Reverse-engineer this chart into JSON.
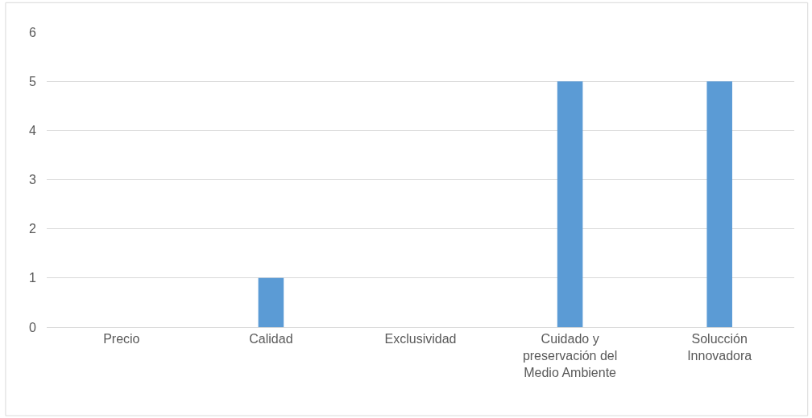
{
  "chart_data": {
    "type": "bar",
    "categories": [
      "Precio",
      "Calidad",
      "Exclusividad",
      "Cuidado y preservación del Medio Ambiente",
      "Solucción Innovadora"
    ],
    "values": [
      0,
      1,
      0,
      5,
      5
    ],
    "color": "#5b9bd5",
    "ylim": [
      0,
      6
    ],
    "yticks": [
      0,
      1,
      2,
      3,
      4,
      5,
      6
    ],
    "grid": "y"
  }
}
